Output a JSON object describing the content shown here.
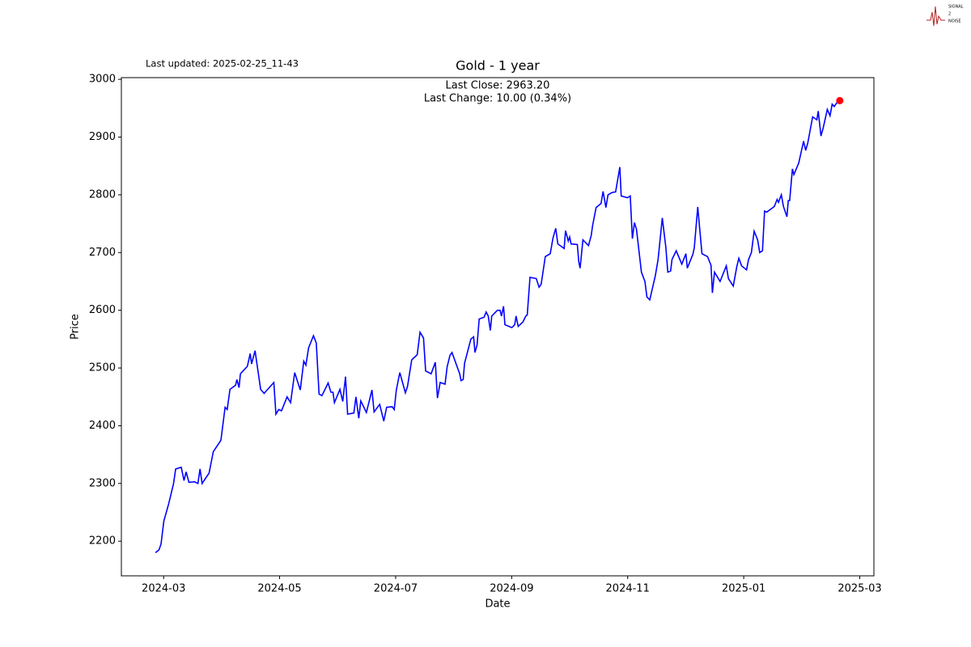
{
  "chart_data": {
    "type": "line",
    "title": "Gold - 1 year",
    "last_updated": "Last updated: 2025-02-25_11-43",
    "annotation_close": "Last Close: 2963.20",
    "annotation_change": "Last Change: 10.00 (0.34%)",
    "xlabel": "Date",
    "ylabel": "Price",
    "logo": [
      "SIGNAL",
      "2",
      "NOISE"
    ],
    "xlim": [
      2024.106,
      2025.187
    ],
    "ylim": [
      2140,
      3003
    ],
    "xticks": [
      {
        "value": 2024.1667,
        "label": "2024-03"
      },
      {
        "value": 2024.3333,
        "label": "2024-05"
      },
      {
        "value": 2024.5,
        "label": "2024-07"
      },
      {
        "value": 2024.6667,
        "label": "2024-09"
      },
      {
        "value": 2024.8333,
        "label": "2024-11"
      },
      {
        "value": 2025.0,
        "label": "2025-01"
      },
      {
        "value": 2025.1667,
        "label": "2025-03"
      }
    ],
    "yticks": [
      2200,
      2300,
      2400,
      2500,
      2600,
      2700,
      2800,
      2900,
      3000
    ],
    "last_point_color": "#ff0000",
    "series": [
      {
        "color": "#0000ff",
        "x": [
          2024.155,
          2024.16,
          2024.163,
          2024.167,
          2024.174,
          2024.181,
          2024.184,
          2024.192,
          2024.196,
          2024.199,
          2024.203,
          2024.211,
          2024.216,
          2024.219,
          2024.222,
          2024.232,
          2024.238,
          2024.249,
          2024.255,
          2024.258,
          2024.262,
          2024.27,
          2024.272,
          2024.275,
          2024.277,
          2024.287,
          2024.291,
          2024.293,
          2024.298,
          2024.306,
          2024.311,
          2024.325,
          2024.328,
          2024.332,
          2024.336,
          2024.344,
          2024.349,
          2024.355,
          2024.363,
          2024.368,
          2024.371,
          2024.375,
          2024.382,
          2024.386,
          2024.39,
          2024.394,
          2024.403,
          2024.407,
          2024.41,
          2024.412,
          2024.42,
          2024.424,
          2024.428,
          2024.431,
          2024.44,
          2024.443,
          2024.447,
          2024.45,
          2024.458,
          2024.466,
          2024.469,
          2024.477,
          2024.483,
          2024.487,
          2024.495,
          2024.498,
          2024.501,
          2024.506,
          2024.514,
          2024.517,
          2024.523,
          2024.531,
          2024.535,
          2024.54,
          2024.543,
          2024.551,
          2024.557,
          2024.56,
          2024.564,
          2024.571,
          2024.574,
          2024.578,
          2024.581,
          2024.592,
          2024.594,
          2024.597,
          2024.599,
          2024.608,
          2024.612,
          2024.614,
          2024.617,
          2024.62,
          2024.627,
          2024.63,
          2024.633,
          2024.636,
          2024.638,
          2024.646,
          2024.65,
          2024.652,
          2024.655,
          2024.657,
          2024.667,
          2024.671,
          2024.673,
          2024.676,
          2024.683,
          2024.687,
          2024.689,
          2024.693,
          2024.702,
          2024.706,
          2024.709,
          2024.715,
          2024.722,
          2024.726,
          2024.73,
          2024.733,
          2024.742,
          2024.744,
          2024.748,
          2024.75,
          2024.752,
          2024.761,
          2024.763,
          2024.765,
          2024.769,
          2024.777,
          2024.781,
          2024.783,
          2024.788,
          2024.795,
          2024.798,
          2024.802,
          2024.805,
          2024.811,
          2024.816,
          2024.822,
          2024.824,
          2024.833,
          2024.837,
          2024.84,
          2024.843,
          2024.846,
          2024.853,
          2024.858,
          2024.861,
          2024.865,
          2024.873,
          2024.877,
          2024.883,
          2024.888,
          2024.891,
          2024.895,
          2024.897,
          2024.903,
          2024.911,
          2024.917,
          2024.919,
          2024.927,
          2024.929,
          2024.934,
          2024.94,
          2024.948,
          2024.953,
          2024.955,
          2024.958,
          2024.966,
          2024.975,
          2024.978,
          2024.985,
          2024.99,
          2024.993,
          2024.997,
          2025.004,
          2025.007,
          2025.011,
          2025.015,
          2025.02,
          2025.023,
          2025.027,
          2025.03,
          2025.033,
          2025.041,
          2025.044,
          2025.048,
          2025.05,
          2025.054,
          2025.057,
          2025.062,
          2025.064,
          2025.066,
          2025.07,
          2025.072,
          2025.079,
          2025.086,
          2025.089,
          2025.092,
          2025.099,
          2025.105,
          2025.107,
          2025.111,
          2025.114,
          2025.12,
          2025.124,
          2025.127,
          2025.13,
          2025.134,
          2025.138
        ],
        "values": [
          2180,
          2185,
          2195,
          2235,
          2265,
          2300,
          2325,
          2328,
          2305,
          2320,
          2302,
          2303,
          2300,
          2325,
          2300,
          2318,
          2355,
          2375,
          2432,
          2428,
          2463,
          2470,
          2480,
          2466,
          2490,
          2503,
          2525,
          2507,
          2530,
          2463,
          2456,
          2475,
          2420,
          2428,
          2426,
          2450,
          2440,
          2492,
          2462,
          2512,
          2505,
          2535,
          2556,
          2543,
          2455,
          2452,
          2474,
          2458,
          2458,
          2440,
          2463,
          2442,
          2485,
          2420,
          2422,
          2450,
          2413,
          2443,
          2423,
          2462,
          2424,
          2437,
          2408,
          2432,
          2433,
          2428,
          2462,
          2492,
          2457,
          2468,
          2514,
          2523,
          2562,
          2552,
          2495,
          2490,
          2510,
          2448,
          2475,
          2472,
          2502,
          2522,
          2527,
          2490,
          2478,
          2480,
          2508,
          2550,
          2554,
          2527,
          2540,
          2585,
          2588,
          2597,
          2590,
          2565,
          2590,
          2600,
          2600,
          2590,
          2607,
          2575,
          2570,
          2575,
          2590,
          2572,
          2580,
          2590,
          2592,
          2657,
          2655,
          2640,
          2645,
          2693,
          2698,
          2725,
          2742,
          2715,
          2707,
          2738,
          2720,
          2727,
          2715,
          2714,
          2685,
          2673,
          2722,
          2712,
          2730,
          2747,
          2778,
          2785,
          2806,
          2778,
          2800,
          2804,
          2805,
          2848,
          2798,
          2795,
          2798,
          2724,
          2752,
          2740,
          2666,
          2650,
          2623,
          2618,
          2660,
          2688,
          2760,
          2710,
          2666,
          2668,
          2688,
          2703,
          2680,
          2698,
          2673,
          2697,
          2708,
          2779,
          2698,
          2693,
          2678,
          2630,
          2666,
          2650,
          2677,
          2655,
          2642,
          2675,
          2690,
          2677,
          2670,
          2688,
          2700,
          2737,
          2722,
          2700,
          2703,
          2772,
          2770,
          2777,
          2780,
          2792,
          2787,
          2800,
          2780,
          2762,
          2790,
          2790,
          2845,
          2835,
          2855,
          2893,
          2877,
          2890,
          2935,
          2930,
          2945,
          2902,
          2915,
          2948,
          2937,
          2957,
          2953,
          2960,
          2963.2
        ]
      }
    ]
  }
}
